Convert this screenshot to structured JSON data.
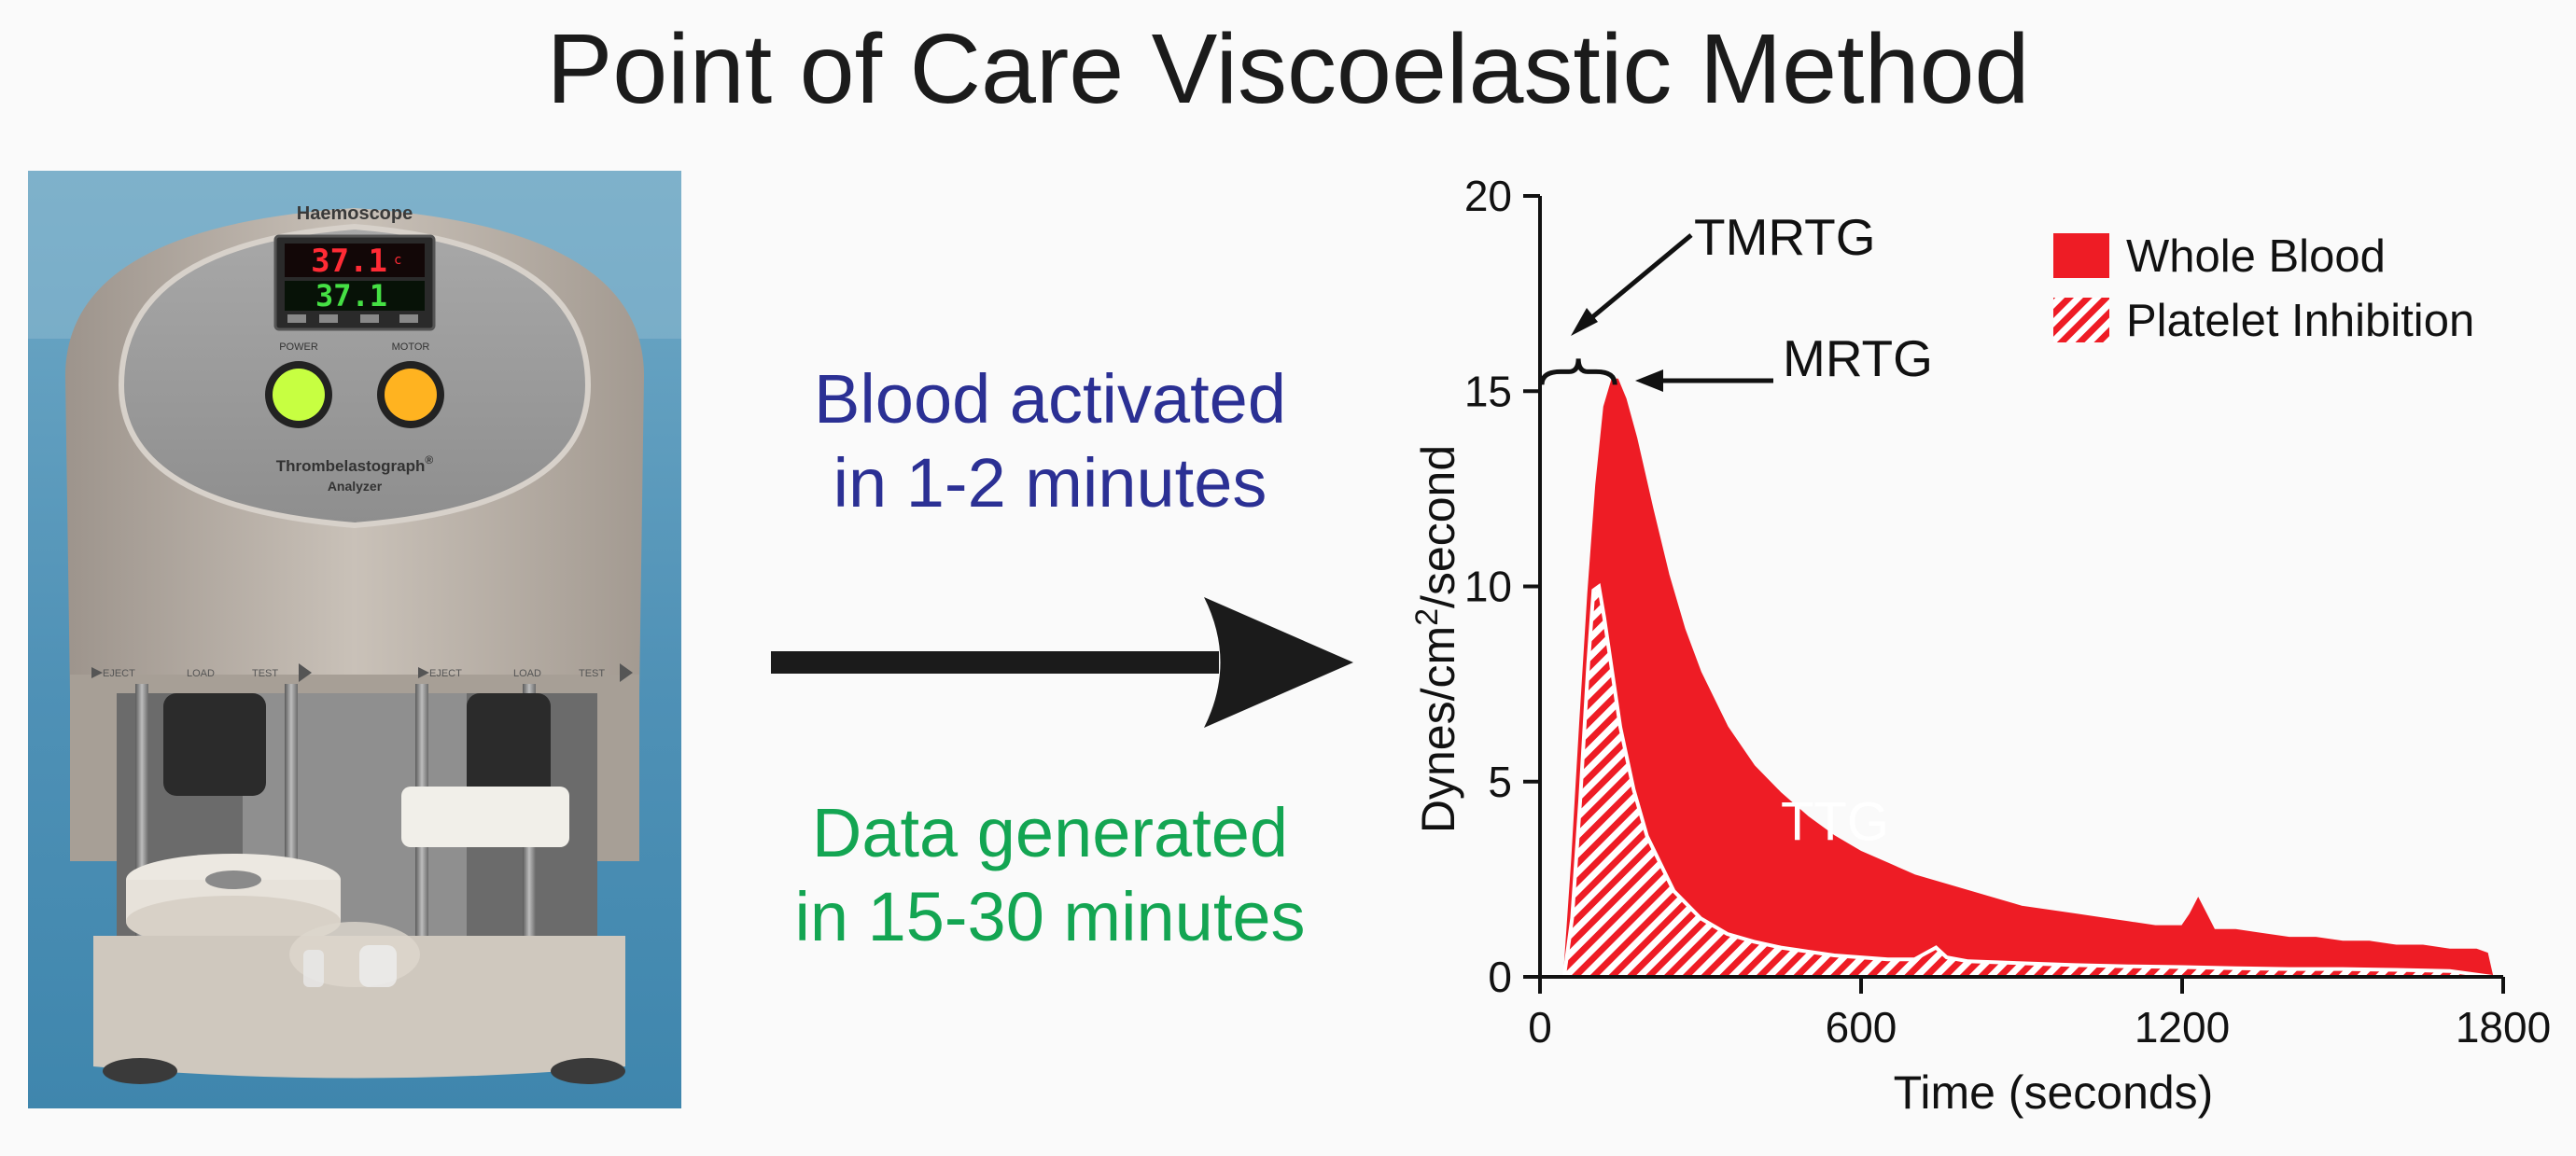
{
  "figure_title": "Point of Care Viscoelastic Method",
  "device": {
    "brand": "Haemoscope",
    "display_top": "37.1",
    "display_unit": "c",
    "display_bottom": "37.1",
    "power_label": "POWER",
    "motor_label": "MOTOR",
    "product_name": "Thrombelastograph",
    "registered_mark": "®",
    "product_sub": "Analyzer",
    "left_rail": [
      "EJECT",
      "LOAD",
      "TEST"
    ],
    "right_rail": [
      "EJECT",
      "LOAD",
      "TEST"
    ]
  },
  "middle": {
    "activated_line1": "Blood activated",
    "activated_line2": "in 1-2 minutes",
    "generated_line1": "Data generated",
    "generated_line2": "in 15-30 minutes"
  },
  "colors": {
    "whole_blood": "#ee1c25",
    "activated_text": "#2b3094",
    "generated_text": "#13a552"
  },
  "chart_data": {
    "type": "area",
    "title": "",
    "xlabel": "Time (seconds)",
    "ylabel_prefix": "Dynes/cm",
    "ylabel_sup": "2",
    "ylabel_suffix": "/second",
    "xlim": [
      0,
      1800
    ],
    "ylim": [
      0,
      20
    ],
    "xticks": [
      0,
      600,
      1200,
      1800
    ],
    "yticks": [
      0,
      5,
      10,
      15,
      20
    ],
    "legend_position": "top-right",
    "series": [
      {
        "name": "Whole Blood",
        "style": "solid",
        "x": [
          45,
          60,
          75,
          90,
          105,
          120,
          135,
          145,
          160,
          180,
          210,
          240,
          270,
          300,
          350,
          400,
          450,
          500,
          550,
          600,
          650,
          700,
          750,
          800,
          850,
          900,
          950,
          1000,
          1050,
          1100,
          1150,
          1200,
          1215,
          1230,
          1245,
          1260,
          1300,
          1350,
          1400,
          1450,
          1500,
          1550,
          1600,
          1650,
          1700,
          1750,
          1770,
          1780
        ],
        "values": [
          0,
          3.0,
          6.5,
          9.8,
          12.6,
          14.6,
          15.3,
          15.3,
          14.8,
          13.8,
          12.0,
          10.3,
          8.9,
          7.8,
          6.4,
          5.4,
          4.7,
          4.1,
          3.6,
          3.2,
          2.9,
          2.6,
          2.4,
          2.2,
          2.0,
          1.8,
          1.7,
          1.6,
          1.5,
          1.4,
          1.3,
          1.3,
          1.6,
          2.0,
          1.6,
          1.2,
          1.2,
          1.1,
          1.0,
          1.0,
          0.9,
          0.9,
          0.8,
          0.8,
          0.7,
          0.7,
          0.6,
          0
        ]
      },
      {
        "name": "Platelet Inhibition",
        "style": "hatched",
        "x": [
          45,
          60,
          75,
          90,
          100,
          110,
          120,
          135,
          150,
          175,
          200,
          250,
          300,
          350,
          400,
          450,
          500,
          550,
          600,
          650,
          700,
          720,
          740,
          760,
          800,
          900,
          1000,
          1100,
          1200,
          1300,
          1400,
          1500,
          1600,
          1700,
          1780
        ],
        "values": [
          0,
          1.5,
          4.5,
          8.0,
          9.9,
          10.0,
          9.2,
          7.8,
          6.4,
          4.8,
          3.6,
          2.2,
          1.5,
          1.1,
          0.9,
          0.75,
          0.65,
          0.55,
          0.5,
          0.45,
          0.45,
          0.6,
          0.75,
          0.5,
          0.4,
          0.35,
          0.3,
          0.27,
          0.25,
          0.22,
          0.2,
          0.2,
          0.18,
          0.15,
          0
        ]
      }
    ],
    "annotations": {
      "tmrtg": "TMRTG",
      "mrtg": "MRTG",
      "ttg": "TTG",
      "tmrtg_bracket_x": [
        0,
        140
      ],
      "tmrtg_bracket_y": 15.5,
      "mrtg_point": [
        135,
        15.3
      ],
      "ttg_position": [
        450,
        3.5
      ]
    }
  }
}
